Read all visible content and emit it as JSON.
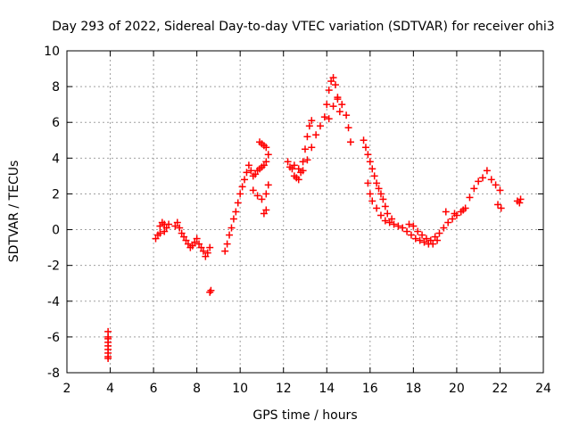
{
  "chart_data": {
    "type": "scatter",
    "title": "Day 293 of 2022, Sidereal Day-to-day VTEC variation (SDTVAR) for receiver ohi3",
    "xlabel": "GPS time / hours",
    "ylabel": "SDTVAR / TECUs",
    "xlim": [
      2,
      24
    ],
    "ylim": [
      -8,
      10
    ],
    "xticks": [
      2,
      4,
      6,
      8,
      10,
      12,
      14,
      16,
      18,
      20,
      22,
      24
    ],
    "yticks": [
      -8,
      -6,
      -4,
      -2,
      0,
      2,
      4,
      6,
      8,
      10
    ],
    "grid": true,
    "marker": "+",
    "color": "#ff0000",
    "series": [
      {
        "name": "SDTVAR",
        "x": [
          3.9,
          3.9,
          3.9,
          3.9,
          3.9,
          3.9,
          3.9,
          3.9,
          3.9,
          6.1,
          6.2,
          6.3,
          6.4,
          6.5,
          6.6,
          6.7,
          6.3,
          6.5,
          7.0,
          7.1,
          7.2,
          7.3,
          7.4,
          7.5,
          7.6,
          7.7,
          7.8,
          7.9,
          8.0,
          8.1,
          8.2,
          8.3,
          8.4,
          8.5,
          8.6,
          8.6,
          8.65,
          9.3,
          9.4,
          9.5,
          9.6,
          9.7,
          9.8,
          9.9,
          10.0,
          10.1,
          10.2,
          10.3,
          10.4,
          10.5,
          10.6,
          10.7,
          10.8,
          10.9,
          11.0,
          11.1,
          11.2,
          11.3,
          10.9,
          11.0,
          11.1,
          11.2,
          10.6,
          10.8,
          11.0,
          11.2,
          11.3,
          11.1,
          11.2,
          12.2,
          12.3,
          12.4,
          12.5,
          12.6,
          12.7,
          12.8,
          12.9,
          13.0,
          13.1,
          13.2,
          13.3,
          12.5,
          12.7,
          12.9,
          13.1,
          13.3,
          13.5,
          13.7,
          13.9,
          14.0,
          14.1,
          14.2,
          14.3,
          14.4,
          14.5,
          14.6,
          14.1,
          14.3,
          14.5,
          14.7,
          14.9,
          15.0,
          15.1,
          15.7,
          15.8,
          15.9,
          16.0,
          16.1,
          16.2,
          16.3,
          16.4,
          16.5,
          16.6,
          16.7,
          16.8,
          17.0,
          15.9,
          16.0,
          16.1,
          16.3,
          16.5,
          16.7,
          16.9,
          17.1,
          17.3,
          17.5,
          17.7,
          17.9,
          18.1,
          18.3,
          18.5,
          18.7,
          18.9,
          19.1,
          17.8,
          18.0,
          18.2,
          18.4,
          18.6,
          18.8,
          19.0,
          19.2,
          19.4,
          19.6,
          19.8,
          20.0,
          20.2,
          20.4,
          19.5,
          19.9,
          20.3,
          20.6,
          20.8,
          21.0,
          21.2,
          21.4,
          21.6,
          21.8,
          22.0,
          21.9,
          22.05,
          22.8,
          22.9,
          22.95
        ],
        "y": [
          -5.7,
          -6.0,
          -6.3,
          -6.5,
          -6.7,
          -6.9,
          -7.1,
          -7.2,
          -6.1,
          -0.5,
          -0.3,
          0.2,
          0.4,
          0.3,
          0.1,
          0.3,
          -0.2,
          -0.1,
          0.2,
          0.4,
          0.1,
          -0.2,
          -0.4,
          -0.6,
          -0.8,
          -1.0,
          -0.9,
          -0.7,
          -0.5,
          -0.8,
          -1.0,
          -1.2,
          -1.5,
          -1.3,
          -1.0,
          -3.5,
          -3.4,
          -1.2,
          -0.8,
          -0.3,
          0.1,
          0.6,
          1.0,
          1.5,
          2.0,
          2.4,
          2.8,
          3.2,
          3.6,
          3.3,
          3.0,
          3.1,
          3.3,
          3.4,
          3.5,
          3.6,
          3.8,
          4.2,
          4.9,
          4.8,
          4.7,
          4.6,
          2.2,
          1.9,
          1.7,
          2.0,
          2.5,
          0.9,
          1.1,
          3.8,
          3.5,
          3.4,
          3.0,
          2.9,
          2.8,
          3.2,
          3.8,
          4.5,
          5.2,
          5.8,
          6.1,
          3.6,
          3.4,
          3.3,
          3.9,
          4.6,
          5.3,
          5.8,
          6.3,
          7.0,
          7.8,
          8.3,
          8.5,
          8.1,
          7.4,
          6.6,
          6.2,
          6.9,
          7.3,
          7.0,
          6.4,
          5.7,
          4.9,
          5.0,
          4.6,
          4.2,
          3.8,
          3.4,
          3.0,
          2.6,
          2.3,
          2.0,
          1.7,
          1.3,
          0.9,
          0.6,
          2.6,
          2.0,
          1.6,
          1.2,
          0.8,
          0.5,
          0.4,
          0.3,
          0.2,
          0.1,
          -0.1,
          -0.3,
          -0.5,
          -0.6,
          -0.7,
          -0.8,
          -0.8,
          -0.6,
          0.3,
          0.2,
          -0.1,
          -0.3,
          -0.5,
          -0.6,
          -0.4,
          -0.2,
          0.1,
          0.4,
          0.6,
          0.8,
          1.0,
          1.2,
          1.0,
          0.9,
          1.1,
          1.8,
          2.3,
          2.7,
          2.9,
          3.3,
          2.8,
          2.5,
          2.2,
          1.4,
          1.2,
          1.6,
          1.5,
          1.7
        ]
      }
    ]
  }
}
